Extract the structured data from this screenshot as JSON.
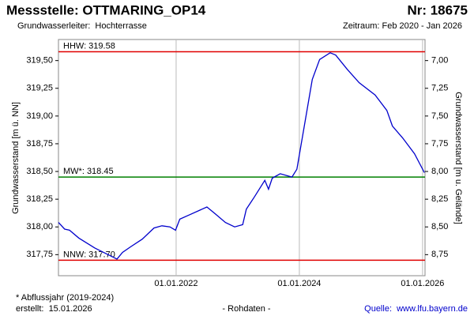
{
  "chart_data": {
    "type": "line",
    "title": "Messstelle: OTTMARING_OP14",
    "title_right": "Nr: 18675",
    "subtitle": "Grundwasserleiter:  Hochterrasse",
    "subtitle_right": "Zeitraum: Feb 2020 - Jan 2026",
    "ylabel": "Grundwasserstand [m ü. NN]",
    "y2label": "Grundwasserstand [m u. Gelände]",
    "x": [
      2020.09,
      2020.19,
      2020.27,
      2020.42,
      2020.68,
      2020.93,
      2021.04,
      2021.13,
      2021.26,
      2021.45,
      2021.64,
      2021.77,
      2021.9,
      2021.99,
      2022.06,
      2022.22,
      2022.5,
      2022.63,
      2022.8,
      2022.95,
      2023.08,
      2023.14,
      2023.27,
      2023.44,
      2023.5,
      2023.56,
      2023.69,
      2023.88,
      2023.96,
      2024.08,
      2024.21,
      2024.33,
      2024.5,
      2024.59,
      2024.78,
      2024.97,
      2025.23,
      2025.42,
      2025.51,
      2025.68,
      2025.87,
      2026.03
    ],
    "series": [
      {
        "color": "#0000cc",
        "values": [
          318.04,
          317.98,
          317.97,
          317.9,
          317.81,
          317.74,
          317.71,
          317.77,
          317.82,
          317.89,
          317.99,
          318.01,
          318.0,
          317.97,
          318.07,
          318.11,
          318.18,
          318.12,
          318.04,
          318.0,
          318.02,
          318.16,
          318.27,
          318.42,
          318.34,
          318.44,
          318.48,
          318.45,
          318.52,
          318.91,
          319.33,
          319.51,
          319.57,
          319.55,
          319.42,
          319.3,
          319.19,
          319.05,
          318.91,
          318.8,
          318.66,
          318.49
        ]
      }
    ],
    "reference_lines": [
      {
        "label": "HHW: 319.58",
        "value": 319.58,
        "color": "#e00000"
      },
      {
        "label": "MW*: 318.45",
        "value": 318.45,
        "color": "#008000"
      },
      {
        "label": "NNW: 317.70",
        "value": 317.7,
        "color": "#e00000"
      }
    ],
    "xlim": [
      2020.09,
      2026.04
    ],
    "xticks": [
      {
        "value": 2022.0,
        "label": "01.01.2022"
      },
      {
        "value": 2024.0,
        "label": "01.01.2024"
      },
      {
        "value": 2026.0,
        "label": "01.01.2026"
      }
    ],
    "ylim": [
      317.56,
      319.69
    ],
    "yticks": [
      {
        "value": 317.75,
        "label": "317,75"
      },
      {
        "value": 318.0,
        "label": "318,00"
      },
      {
        "value": 318.25,
        "label": "318,25"
      },
      {
        "value": 318.5,
        "label": "318,50"
      },
      {
        "value": 318.75,
        "label": "318,75"
      },
      {
        "value": 319.0,
        "label": "319,00"
      },
      {
        "value": 319.25,
        "label": "319,25"
      },
      {
        "value": 319.5,
        "label": "319,50"
      }
    ],
    "y2lim": [
      8.94,
      6.81
    ],
    "y2ticks": [
      {
        "value": 7.0,
        "label": "7,00"
      },
      {
        "value": 7.25,
        "label": "7,25"
      },
      {
        "value": 7.5,
        "label": "7,50"
      },
      {
        "value": 7.75,
        "label": "7,75"
      },
      {
        "value": 8.0,
        "label": "8,00"
      },
      {
        "value": 8.25,
        "label": "8,25"
      },
      {
        "value": 8.5,
        "label": "8,50"
      },
      {
        "value": 8.75,
        "label": "8,75"
      }
    ],
    "grid": true,
    "notes": [
      "* Abflussjahr (2019-2024)",
      "erstellt:  15.01.2026",
      "- Rohdaten -",
      "Quelle:  www.lfu.bayern.de"
    ]
  }
}
